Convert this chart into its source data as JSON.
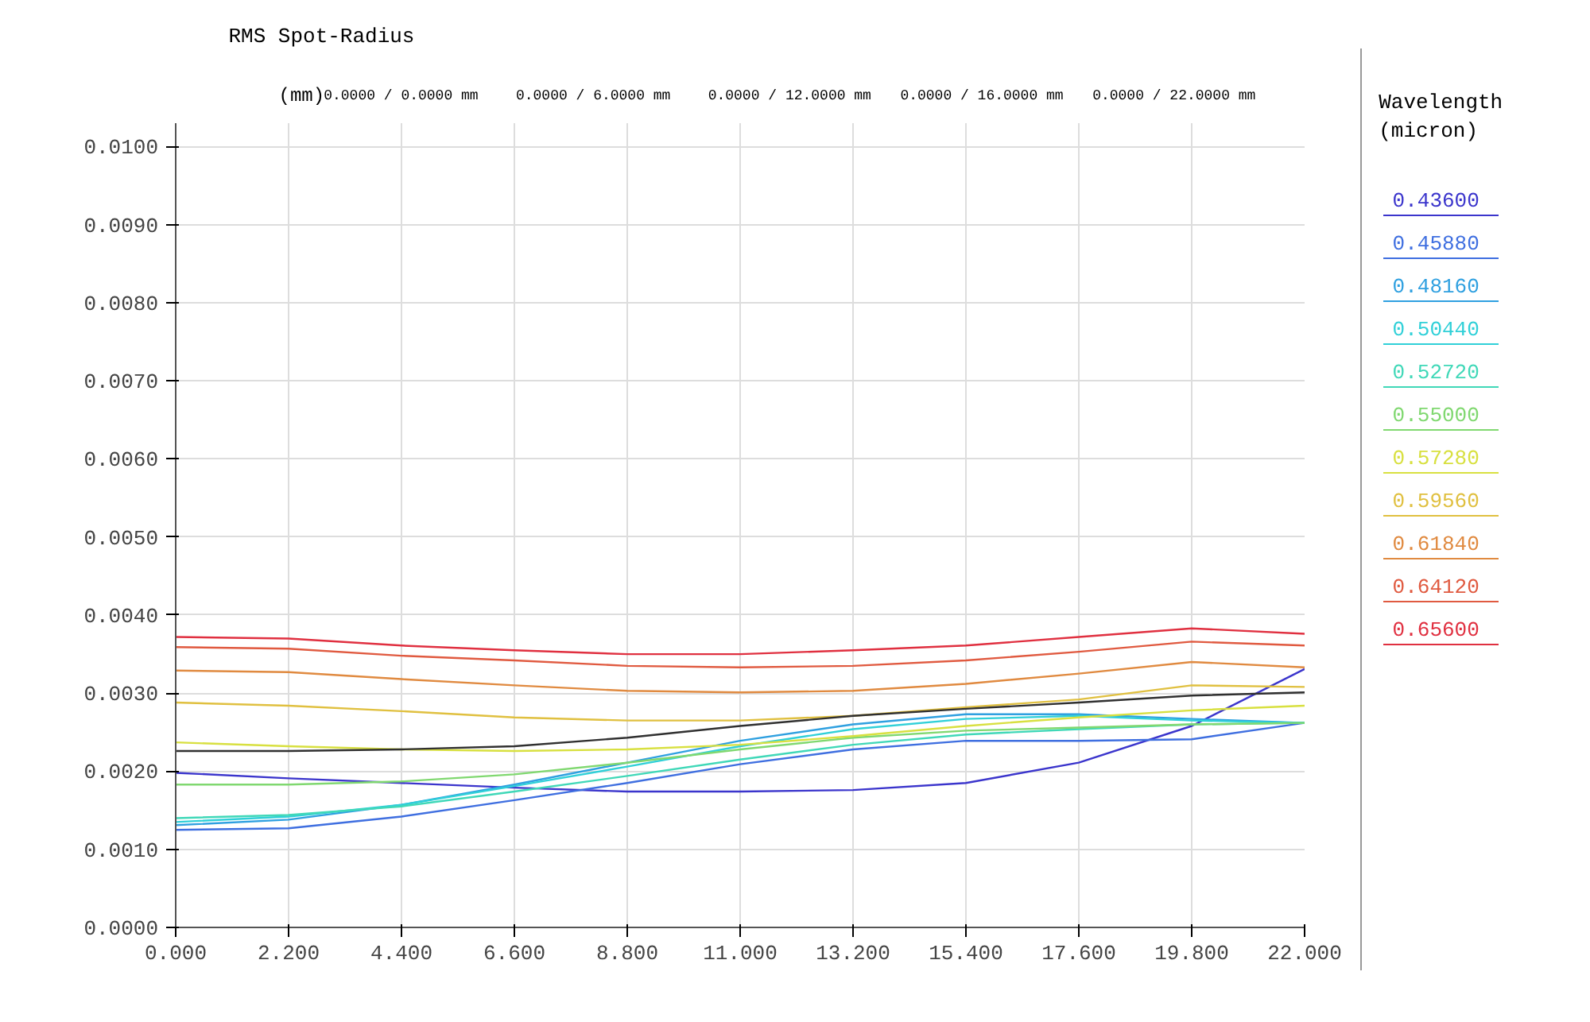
{
  "chart_data": {
    "type": "line",
    "title": "RMS Spot-Radius",
    "ylabel": "(mm)",
    "legend_title": "Wavelength (micron)",
    "x": [
      0,
      2.2,
      4.4,
      6.6,
      8.8,
      11,
      13.2,
      15.4,
      17.6,
      19.8,
      22
    ],
    "xlim": [
      0,
      22
    ],
    "ylim": [
      0,
      0.0103
    ],
    "xticks": [
      {
        "value": 0,
        "label": "0.000"
      },
      {
        "value": 2.2,
        "label": "2.200"
      },
      {
        "value": 4.4,
        "label": "4.400"
      },
      {
        "value": 6.6,
        "label": "6.600"
      },
      {
        "value": 8.8,
        "label": "8.800"
      },
      {
        "value": 11,
        "label": "11.000"
      },
      {
        "value": 13.2,
        "label": "13.200"
      },
      {
        "value": 15.4,
        "label": "15.400"
      },
      {
        "value": 17.6,
        "label": "17.600"
      },
      {
        "value": 19.8,
        "label": "19.800"
      },
      {
        "value": 22,
        "label": "22.000"
      }
    ],
    "yticks": [
      {
        "value": 0,
        "label": "0.0000"
      },
      {
        "value": 0.001,
        "label": "0.0010"
      },
      {
        "value": 0.002,
        "label": "0.0020"
      },
      {
        "value": 0.003,
        "label": "0.0030"
      },
      {
        "value": 0.004,
        "label": "0.0040"
      },
      {
        "value": 0.005,
        "label": "0.0050"
      },
      {
        "value": 0.006,
        "label": "0.0060"
      },
      {
        "value": 0.007,
        "label": "0.0070"
      },
      {
        "value": 0.008,
        "label": "0.0080"
      },
      {
        "value": 0.009,
        "label": "0.0090"
      },
      {
        "value": 0.01,
        "label": "0.0100"
      }
    ],
    "grid": true,
    "legend": "right",
    "line_style": "solid",
    "annotations": [
      "0.0000 /  0.0000 mm",
      "0.0000 /  6.0000 mm",
      "0.0000 / 12.0000 mm",
      "0.0000 / 16.0000 mm",
      "0.0000 / 22.0000 mm"
    ],
    "series": [
      {
        "name": "0.43600",
        "color": "#3b35cc",
        "values": [
          0.00198,
          0.00191,
          0.00185,
          0.00179,
          0.00174,
          0.00174,
          0.00176,
          0.00185,
          0.00211,
          0.00258,
          0.00331
        ]
      },
      {
        "name": "0.45880",
        "color": "#3f6fe0",
        "values": [
          0.00125,
          0.00127,
          0.00142,
          0.00163,
          0.00185,
          0.00209,
          0.00228,
          0.00239,
          0.00239,
          0.00241,
          0.00262
        ]
      },
      {
        "name": "0.48160",
        "color": "#2fa0e0",
        "values": [
          0.00131,
          0.00138,
          0.00157,
          0.00183,
          0.00211,
          0.00239,
          0.0026,
          0.00273,
          0.00273,
          0.00267,
          0.00262
        ]
      },
      {
        "name": "0.50440",
        "color": "#30d0d8",
        "values": [
          0.00135,
          0.00142,
          0.00157,
          0.00181,
          0.00206,
          0.00232,
          0.00254,
          0.00267,
          0.00271,
          0.00265,
          0.00262
        ]
      },
      {
        "name": "0.52720",
        "color": "#40d8b8",
        "values": [
          0.0014,
          0.00144,
          0.00155,
          0.00174,
          0.00194,
          0.00215,
          0.00234,
          0.00247,
          0.00254,
          0.0026,
          0.00262
        ]
      },
      {
        "name": "0.55000",
        "color": "#80d870",
        "values": [
          0.00183,
          0.00183,
          0.00187,
          0.00196,
          0.00211,
          0.00228,
          0.00243,
          0.00252,
          0.00256,
          0.0026,
          0.00262
        ]
      },
      {
        "name": "0.57280",
        "color": "#d8e040",
        "values": [
          0.00237,
          0.00232,
          0.00228,
          0.00226,
          0.00228,
          0.00234,
          0.00245,
          0.00258,
          0.00269,
          0.00278,
          0.00284
        ]
      },
      {
        "name": "0.59560",
        "color": "#e0c040",
        "values": [
          0.00288,
          0.00284,
          0.00277,
          0.00269,
          0.00265,
          0.00265,
          0.00271,
          0.00282,
          0.00292,
          0.0031,
          0.00308
        ]
      },
      {
        "name": "0.61840",
        "color": "#e08a40",
        "values": [
          0.00329,
          0.00327,
          0.00318,
          0.0031,
          0.00303,
          0.00301,
          0.00303,
          0.00312,
          0.00325,
          0.0034,
          0.00333
        ]
      },
      {
        "name": "0.64120",
        "color": "#e05a40",
        "values": [
          0.00359,
          0.00357,
          0.00348,
          0.00342,
          0.00335,
          0.00333,
          0.00335,
          0.00342,
          0.00353,
          0.00366,
          0.00361
        ]
      },
      {
        "name": "0.65600",
        "color": "#e03040",
        "values": [
          0.00372,
          0.0037,
          0.00361,
          0.00355,
          0.0035,
          0.0035,
          0.00355,
          0.00361,
          0.00372,
          0.00383,
          0.00376
        ]
      },
      {
        "color": "#303030",
        "values": [
          0.00226,
          0.00226,
          0.00228,
          0.00232,
          0.00243,
          0.00258,
          0.00271,
          0.0028,
          0.00288,
          0.00297,
          0.00301
        ]
      }
    ]
  }
}
